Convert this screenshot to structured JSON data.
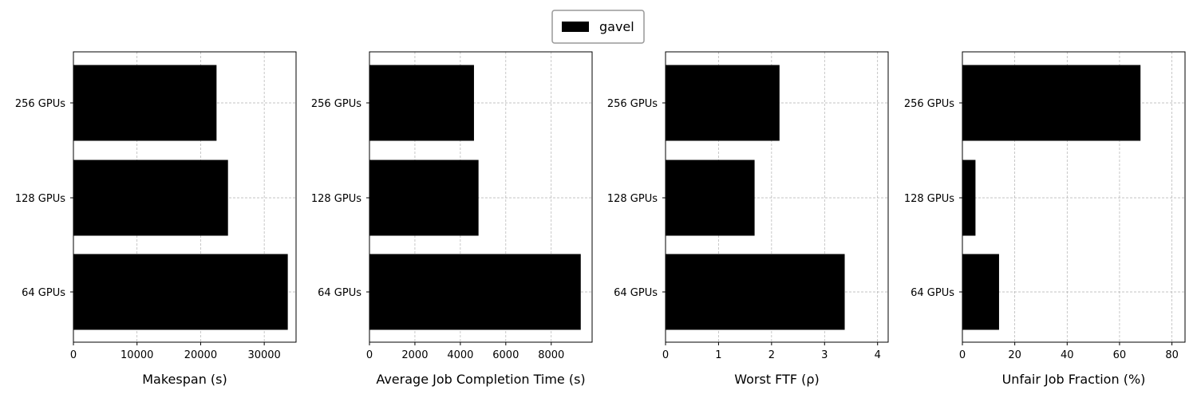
{
  "legend": {
    "label": "gavel",
    "color": "#000000"
  },
  "chart_data": [
    {
      "type": "bar",
      "orientation": "horizontal",
      "categories": [
        "256 GPUs",
        "128 GPUs",
        "64 GPUs"
      ],
      "series": [
        {
          "name": "gavel",
          "values": [
            22500,
            24300,
            33700
          ]
        }
      ],
      "xlabel": "Makespan (s)",
      "xlim": [
        0,
        35000
      ],
      "xticks": [
        0,
        10000,
        20000,
        30000
      ],
      "grid": true,
      "legend_position": "top-center"
    },
    {
      "type": "bar",
      "orientation": "horizontal",
      "categories": [
        "256 GPUs",
        "128 GPUs",
        "64 GPUs"
      ],
      "series": [
        {
          "name": "gavel",
          "values": [
            4600,
            4800,
            9300
          ]
        }
      ],
      "xlabel": "Average Job Completion Time (s)",
      "xlim": [
        0,
        9800
      ],
      "xticks": [
        0,
        2000,
        4000,
        6000,
        8000
      ],
      "grid": true
    },
    {
      "type": "bar",
      "orientation": "horizontal",
      "categories": [
        "256 GPUs",
        "128 GPUs",
        "64 GPUs"
      ],
      "series": [
        {
          "name": "gavel",
          "values": [
            2.15,
            1.68,
            3.38
          ]
        }
      ],
      "xlabel": "Worst FTF (ρ)",
      "xlim": [
        0,
        4.2
      ],
      "xticks": [
        0,
        1,
        2,
        3,
        4
      ],
      "grid": true
    },
    {
      "type": "bar",
      "orientation": "horizontal",
      "categories": [
        "256 GPUs",
        "128 GPUs",
        "64 GPUs"
      ],
      "series": [
        {
          "name": "gavel",
          "values": [
            68,
            5,
            14
          ]
        }
      ],
      "xlabel": "Unfair Job Fraction (%)",
      "xlim": [
        0,
        85
      ],
      "xticks": [
        0,
        20,
        40,
        60,
        80
      ],
      "grid": true
    }
  ]
}
